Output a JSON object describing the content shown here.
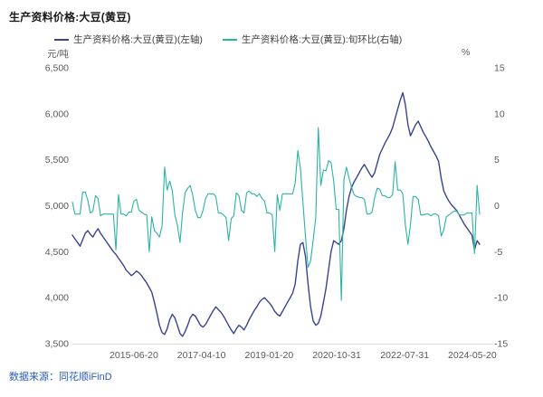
{
  "page": {
    "title": "生产资料价格:大豆(黄豆)",
    "source": "数据来源：同花顺iFinD"
  },
  "legend": [
    {
      "label": "生产资料价格:大豆(黄豆)(左轴)",
      "color": "#3a4390"
    },
    {
      "label": "生产资料价格:大豆(黄豆):旬环比(右轴)",
      "color": "#2bb3a3"
    }
  ],
  "axes": {
    "left_unit": "元/吨",
    "right_unit": "%"
  },
  "chart_data": {
    "type": "line",
    "title": "生产资料价格:大豆(黄豆)",
    "grid": false,
    "legend_position": "top",
    "left_axis": {
      "unit": "元/吨",
      "min": 3500,
      "max": 6500,
      "ticks": [
        {
          "label": "6,500",
          "value": 6500
        },
        {
          "label": "6,000",
          "value": 6000
        },
        {
          "label": "5,500",
          "value": 5500
        },
        {
          "label": "5,000",
          "value": 5000
        },
        {
          "label": "4,500",
          "value": 4500
        },
        {
          "label": "4,000",
          "value": 4000
        },
        {
          "label": "3,500",
          "value": 3500
        }
      ]
    },
    "right_axis": {
      "unit": "%",
      "min": -15,
      "max": 15,
      "ticks": [
        {
          "label": "15",
          "value": 15
        },
        {
          "label": "10",
          "value": 10
        },
        {
          "label": "5",
          "value": 5
        },
        {
          "label": "0",
          "value": 0
        },
        {
          "label": "-5",
          "value": -5
        },
        {
          "label": "-10",
          "value": -10
        },
        {
          "label": "-15",
          "value": -15
        }
      ]
    },
    "x_axis": {
      "tick_labels": [
        {
          "label": "2015-06-20",
          "pos": 0.151
        },
        {
          "label": "2017-04-10",
          "pos": 0.317
        },
        {
          "label": "2019-01-20",
          "pos": 0.483
        },
        {
          "label": "2020-10-31",
          "pos": 0.649
        },
        {
          "label": "2022-07-31",
          "pos": 0.816
        },
        {
          "label": "2024-05-20",
          "pos": 0.982
        }
      ]
    },
    "series": [
      {
        "name": "生产资料价格:大豆(黄豆)(左轴)",
        "axis": "left",
        "color": "#3a4390",
        "width": 1.4,
        "values": [
          4680,
          4640,
          4600,
          4560,
          4630,
          4700,
          4730,
          4690,
          4660,
          4710,
          4750,
          4700,
          4660,
          4620,
          4580,
          4540,
          4500,
          4470,
          4430,
          4390,
          4350,
          4300,
          4270,
          4240,
          4260,
          4290,
          4270,
          4240,
          4200,
          4160,
          4110,
          4060,
          3950,
          3830,
          3700,
          3620,
          3600,
          3660,
          3760,
          3820,
          3780,
          3700,
          3610,
          3580,
          3630,
          3700,
          3780,
          3820,
          3800,
          3750,
          3700,
          3680,
          3710,
          3760,
          3810,
          3860,
          3900,
          3870,
          3840,
          3800,
          3750,
          3700,
          3650,
          3610,
          3660,
          3700,
          3680,
          3650,
          3700,
          3760,
          3810,
          3860,
          3900,
          3950,
          3980,
          4000,
          3970,
          3940,
          3900,
          3850,
          3820,
          3800,
          3850,
          3900,
          3950,
          4000,
          4050,
          4150,
          4400,
          4580,
          4600,
          4450,
          4150,
          3900,
          3750,
          3700,
          3720,
          3800,
          3950,
          4100,
          4300,
          4500,
          4620,
          4600,
          4580,
          4620,
          4750,
          4950,
          5100,
          5200,
          5260,
          5310,
          5360,
          5410,
          5450,
          5400,
          5350,
          5310,
          5360,
          5460,
          5560,
          5620,
          5680,
          5730,
          5780,
          5850,
          5950,
          6050,
          6150,
          6230,
          6100,
          5880,
          5760,
          5820,
          5880,
          5920,
          5860,
          5800,
          5750,
          5700,
          5640,
          5590,
          5540,
          5480,
          5300,
          5160,
          5100,
          5050,
          5010,
          4980,
          4950,
          4900,
          4850,
          4800,
          4760,
          4720,
          4680,
          4520,
          4620,
          4580
        ]
      },
      {
        "name": "生产资料价格:大豆(黄豆):旬环比(右轴)",
        "axis": "right",
        "color": "#2bb3a3",
        "width": 1.1,
        "values": [
          0.4,
          -0.9,
          -0.9,
          -0.9,
          1.5,
          1.5,
          0.6,
          -0.8,
          -0.6,
          1.1,
          0.8,
          -1.1,
          -0.9,
          -0.9,
          -0.9,
          -0.9,
          -0.9,
          -4.8,
          1.2,
          -0.9,
          -0.9,
          -1.1,
          -0.7,
          -0.7,
          0.5,
          0.7,
          -0.5,
          -0.7,
          -0.9,
          -1.0,
          -5.0,
          -1.2,
          -2.7,
          -3.0,
          -3.4,
          -2.2,
          4.2,
          1.7,
          2.7,
          1.6,
          -1.0,
          -2.1,
          -4.0,
          -0.8,
          1.4,
          1.9,
          2.2,
          1.1,
          -0.5,
          -1.3,
          -1.3,
          -0.5,
          0.8,
          1.3,
          1.3,
          1.3,
          1.0,
          -0.8,
          -0.8,
          -1.0,
          -1.3,
          -3.8,
          -1.4,
          -1.1,
          1.4,
          1.1,
          -0.5,
          -0.8,
          1.4,
          1.6,
          1.3,
          1.3,
          1.0,
          1.3,
          0.8,
          0.5,
          -0.8,
          -0.8,
          -1.0,
          -5.0,
          1.2,
          -0.5,
          1.3,
          1.3,
          1.3,
          1.3,
          1.3,
          2.5,
          6.0,
          4.1,
          0.4,
          -3.3,
          -6.7,
          -6.0,
          -3.8,
          -1.3,
          8.5,
          2.2,
          3.9,
          3.8,
          4.9,
          4.7,
          2.7,
          -0.4,
          -0.4,
          -10.3,
          2.8,
          4.2,
          3.0,
          2.0,
          1.2,
          1.0,
          0.9,
          0.9,
          0.7,
          -0.9,
          -0.9,
          -0.7,
          0.9,
          1.9,
          1.8,
          1.1,
          1.1,
          0.9,
          0.9,
          1.2,
          4.8,
          1.7,
          1.7,
          1.3,
          -2.1,
          -4.2,
          -2.0,
          1.0,
          1.0,
          0.7,
          -1.0,
          -1.0,
          -0.9,
          -0.9,
          -1.1,
          -0.9,
          -0.9,
          -1.1,
          -3.3,
          -2.6,
          -1.2,
          -1.0,
          -0.8,
          -0.6,
          -0.6,
          -1.0,
          -1.0,
          -1.0,
          -0.8,
          -0.8,
          -0.8,
          -5.2,
          2.2,
          -0.9
        ]
      }
    ]
  }
}
